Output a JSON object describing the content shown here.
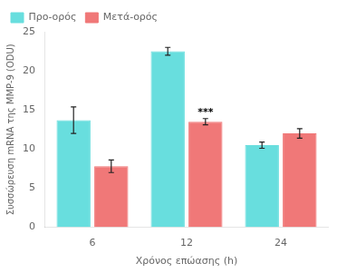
{
  "chart_data": {
    "type": "bar",
    "categories": [
      "6",
      "12",
      "24"
    ],
    "series": [
      {
        "name": "Προ-ορός",
        "color": "#68DEDE",
        "values": [
          13.7,
          22.5,
          10.5
        ],
        "errors": [
          1.7,
          0.5,
          0.4
        ]
      },
      {
        "name": "Μετά-ορός",
        "color": "#F07878",
        "values": [
          7.8,
          13.5,
          12.0
        ],
        "errors": [
          0.8,
          0.4,
          0.6
        ]
      }
    ],
    "xlabel": "Χρόνος επώασης (h)",
    "ylabel": "Συσσώρευση mRNA της MMP-9 (ODU)",
    "ylim": [
      0,
      25
    ],
    "yticks": [
      0,
      5,
      10,
      15,
      20,
      25
    ],
    "grid": false,
    "legend": "upper left",
    "annotations": [
      {
        "text": "***",
        "category": "12",
        "series": "Μετά-ορός",
        "y": 14.0
      }
    ]
  }
}
